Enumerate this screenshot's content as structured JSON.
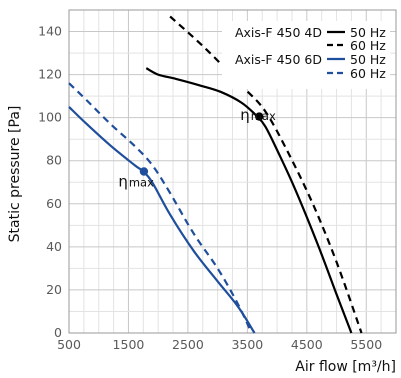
{
  "chart_data": {
    "type": "line",
    "xlabel": "Air flow [m³/h]",
    "ylabel": "Static pressure [Pa]",
    "xlim": [
      500,
      6000
    ],
    "ylim": [
      0,
      150
    ],
    "x_ticks": [
      500,
      1500,
      2500,
      3500,
      4500,
      5500
    ],
    "x_tick_labels": [
      "500",
      "1500",
      "2500",
      "3500",
      "4500",
      "5500"
    ],
    "y_ticks": [
      0,
      20,
      40,
      60,
      80,
      100,
      120,
      140
    ],
    "y_tick_labels": [
      "0",
      "20",
      "40",
      "60",
      "80",
      "100",
      "120",
      "140"
    ],
    "grid": true,
    "legend_position": "top-right",
    "legend_groups": [
      {
        "label": "Axis-F 450 4D",
        "entries": [
          "50 Hz",
          "60 Hz"
        ]
      },
      {
        "label": "Axis-F 450 6D",
        "entries": [
          "50 Hz",
          "60 Hz"
        ]
      }
    ],
    "series": [
      {
        "name": "50 Hz",
        "group": "Axis-F 450 4D",
        "color": "#000000",
        "dash": "solid",
        "x": [
          1800,
          2000,
          2300,
          2700,
          3050,
          3400,
          3650,
          3800,
          4000,
          4300,
          4700,
          5000,
          5250
        ],
        "y": [
          123,
          120,
          118,
          115,
          112,
          107,
          101,
          96,
          85,
          67,
          40,
          18,
          0
        ]
      },
      {
        "name": "60 Hz",
        "group": "Axis-F 450 4D",
        "color": "#000000",
        "dash": "dashed",
        "x": [
          2200,
          2800,
          3400,
          3800,
          4200,
          4600,
          5000,
          5420
        ],
        "y": [
          147,
          132,
          115,
          103,
          83,
          60,
          33,
          0
        ]
      },
      {
        "name": "50 Hz",
        "group": "Axis-F 450 6D",
        "color": "#1f4e9c",
        "dash": "solid",
        "x": [
          500,
          800,
          1200,
          1600,
          1750,
          1900,
          2200,
          2600,
          3000,
          3350,
          3620
        ],
        "y": [
          105,
          97,
          87,
          78,
          75,
          70,
          55,
          38,
          24,
          12,
          0
        ]
      },
      {
        "name": "60 Hz",
        "group": "Axis-F 450 6D",
        "color": "#1f4e9c",
        "dash": "dashed",
        "x": [
          500,
          800,
          1200,
          1600,
          1900,
          2200,
          2600,
          3000,
          3350,
          3570
        ],
        "y": [
          116,
          108,
          97,
          87,
          78,
          65,
          46,
          30,
          13,
          0
        ]
      }
    ],
    "markers": [
      {
        "x": 3700,
        "y": 100.5,
        "color": "#000000"
      },
      {
        "x": 1760,
        "y": 75,
        "color": "#1f4e9c"
      }
    ],
    "annotations": [
      {
        "text": "η",
        "sub": "max",
        "x": 3380,
        "y": 99
      },
      {
        "text": "η",
        "sub": "max",
        "x": 1330,
        "y": 68
      }
    ]
  }
}
